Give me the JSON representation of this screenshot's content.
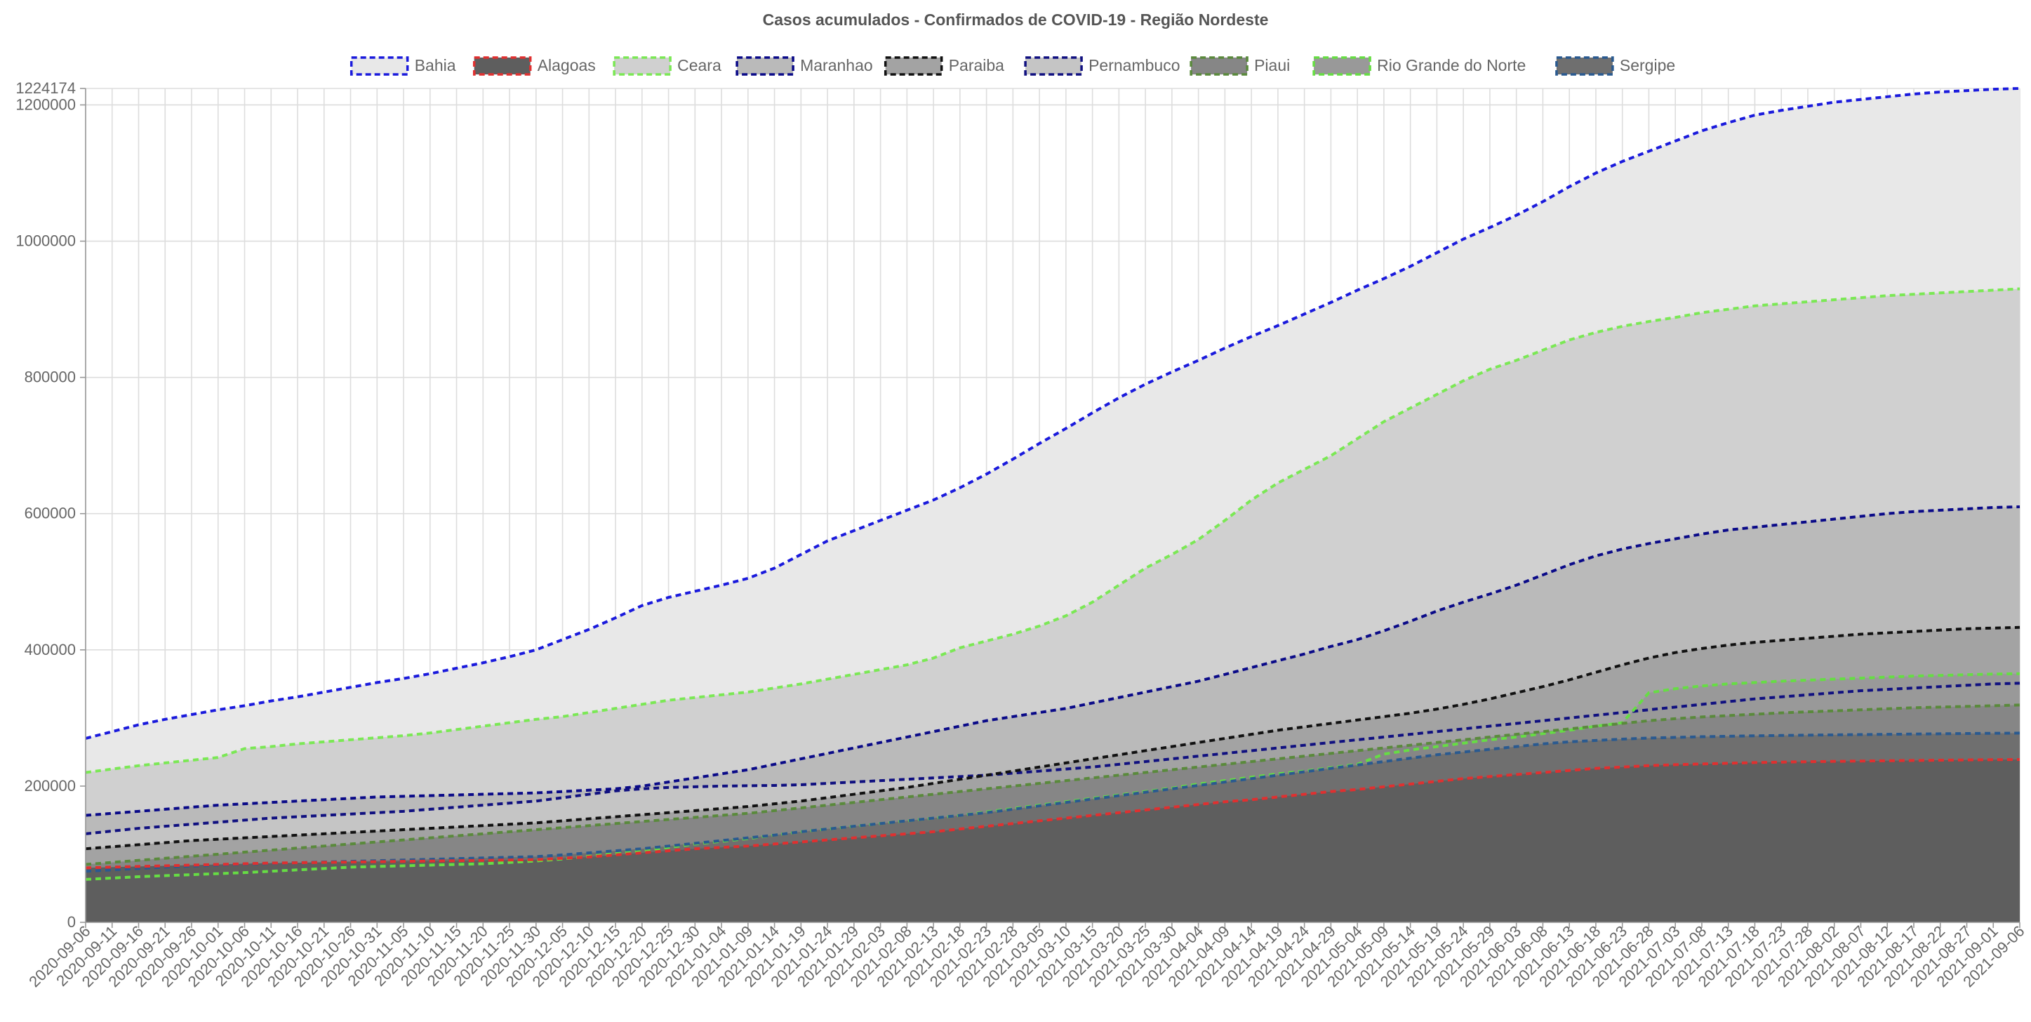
{
  "chart_data": {
    "type": "area",
    "title": "Casos acumulados - Confirmados de COVID-19 - Região Nordeste",
    "xlabel": "",
    "ylabel": "",
    "ylim": [
      0,
      1224174
    ],
    "y_ticks": [
      0,
      200000,
      400000,
      600000,
      800000,
      1000000,
      1200000,
      1224174
    ],
    "legend_position": "top",
    "grid": true,
    "line_style": "dashed",
    "x_ticks": [
      "2020-09-06",
      "2020-09-11",
      "2020-09-16",
      "2020-09-21",
      "2020-09-26",
      "2020-10-01",
      "2020-10-06",
      "2020-10-11",
      "2020-10-16",
      "2020-10-21",
      "2020-10-26",
      "2020-10-31",
      "2020-11-05",
      "2020-11-10",
      "2020-11-15",
      "2020-11-20",
      "2020-11-25",
      "2020-11-30",
      "2020-12-05",
      "2020-12-10",
      "2020-12-15",
      "2020-12-20",
      "2020-12-25",
      "2020-12-30",
      "2021-01-04",
      "2021-01-09",
      "2021-01-14",
      "2021-01-19",
      "2021-01-24",
      "2021-01-29",
      "2021-02-03",
      "2021-02-08",
      "2021-02-13",
      "2021-02-18",
      "2021-02-23",
      "2021-02-28",
      "2021-03-05",
      "2021-03-10",
      "2021-03-15",
      "2021-03-20",
      "2021-03-25",
      "2021-03-30",
      "2021-04-04",
      "2021-04-09",
      "2021-04-14",
      "2021-04-19",
      "2021-04-24",
      "2021-04-29",
      "2021-05-04",
      "2021-05-09",
      "2021-05-14",
      "2021-05-19",
      "2021-05-24",
      "2021-05-29",
      "2021-06-03",
      "2021-06-08",
      "2021-06-13",
      "2021-06-18",
      "2021-06-23",
      "2021-06-28",
      "2021-07-03",
      "2021-07-08",
      "2021-07-13",
      "2021-07-18",
      "2021-07-23",
      "2021-07-28",
      "2021-08-02",
      "2021-08-07",
      "2021-08-12",
      "2021-08-17",
      "2021-08-22",
      "2021-08-27",
      "2021-09-01",
      "2021-09-06"
    ],
    "x": [
      "2020-09-06",
      "2020-09-11",
      "2020-09-16",
      "2020-09-21",
      "2020-09-26",
      "2020-10-01",
      "2020-10-06",
      "2020-10-11",
      "2020-10-16",
      "2020-10-21",
      "2020-10-26",
      "2020-10-31",
      "2020-11-05",
      "2020-11-10",
      "2020-11-15",
      "2020-11-20",
      "2020-11-25",
      "2020-11-30",
      "2020-12-05",
      "2020-12-10",
      "2020-12-15",
      "2020-12-20",
      "2020-12-25",
      "2020-12-30",
      "2021-01-04",
      "2021-01-09",
      "2021-01-14",
      "2021-01-19",
      "2021-01-24",
      "2021-01-29",
      "2021-02-03",
      "2021-02-08",
      "2021-02-13",
      "2021-02-18",
      "2021-02-23",
      "2021-02-28",
      "2021-03-05",
      "2021-03-10",
      "2021-03-15",
      "2021-03-20",
      "2021-03-25",
      "2021-03-30",
      "2021-04-04",
      "2021-04-09",
      "2021-04-14",
      "2021-04-19",
      "2021-04-24",
      "2021-04-29",
      "2021-05-04",
      "2021-05-09",
      "2021-05-14",
      "2021-05-19",
      "2021-05-24",
      "2021-05-29",
      "2021-06-03",
      "2021-06-08",
      "2021-06-13",
      "2021-06-18",
      "2021-06-23",
      "2021-06-28",
      "2021-07-03",
      "2021-07-08",
      "2021-07-13",
      "2021-07-18",
      "2021-07-23",
      "2021-07-28",
      "2021-08-02",
      "2021-08-07",
      "2021-08-12",
      "2021-08-17",
      "2021-08-22",
      "2021-08-27",
      "2021-09-01",
      "2021-09-06"
    ],
    "series": [
      {
        "name": "Bahia",
        "color": "#1a1adc",
        "fill": "#e8e8e8",
        "values": [
          270000,
          280000,
          290000,
          298000,
          305000,
          312000,
          318000,
          325000,
          331000,
          338000,
          345000,
          352000,
          358000,
          365000,
          373000,
          381000,
          390000,
          400000,
          415000,
          430000,
          447000,
          465000,
          477000,
          486000,
          495000,
          505000,
          520000,
          540000,
          560000,
          575000,
          590000,
          605000,
          620000,
          638000,
          658000,
          680000,
          703000,
          725000,
          748000,
          770000,
          790000,
          808000,
          825000,
          843000,
          860000,
          876000,
          893000,
          910000,
          928000,
          945000,
          963000,
          983000,
          1003000,
          1020000,
          1038000,
          1058000,
          1080000,
          1100000,
          1117000,
          1132000,
          1147000,
          1162000,
          1174000,
          1185000,
          1192000,
          1198000,
          1204000,
          1208000,
          1212000,
          1216000,
          1219000,
          1221000,
          1223000,
          1224174
        ]
      },
      {
        "name": "Alagoas",
        "color": "#e03030",
        "fill": "#5e5e5e",
        "values": [
          80000,
          81000,
          82000,
          83000,
          84000,
          85000,
          86000,
          87000,
          87500,
          88000,
          88500,
          89000,
          89500,
          90000,
          90500,
          91000,
          91500,
          92000,
          94000,
          96000,
          99000,
          102000,
          105000,
          108000,
          110000,
          112000,
          115000,
          118000,
          121000,
          124000,
          127000,
          130000,
          133000,
          137000,
          141000,
          145000,
          149000,
          153000,
          157000,
          161000,
          165000,
          169000,
          173000,
          177000,
          180000,
          184000,
          188000,
          192000,
          195000,
          199000,
          203000,
          207000,
          211000,
          214000,
          217000,
          220000,
          223000,
          226000,
          228000,
          230000,
          231500,
          232500,
          233500,
          234500,
          235200,
          235800,
          236300,
          236800,
          237200,
          237600,
          238000,
          238400,
          238800,
          239000
        ]
      },
      {
        "name": "Ceara",
        "color": "#7be855",
        "fill": "#d0d0d0",
        "values": [
          220000,
          225000,
          230000,
          234000,
          238000,
          242000,
          255000,
          258000,
          262000,
          265000,
          268000,
          271000,
          274000,
          278000,
          283000,
          288000,
          293000,
          298000,
          302000,
          308000,
          314000,
          320000,
          326000,
          330000,
          334000,
          338000,
          344000,
          350000,
          357000,
          364000,
          371000,
          378000,
          388000,
          403000,
          413000,
          423000,
          435000,
          450000,
          470000,
          495000,
          520000,
          540000,
          562000,
          590000,
          620000,
          645000,
          665000,
          685000,
          710000,
          735000,
          755000,
          775000,
          795000,
          812000,
          825000,
          840000,
          855000,
          866000,
          875000,
          882000,
          888000,
          895000,
          900000,
          905000,
          908000,
          911000,
          914000,
          917000,
          920000,
          922000,
          924000,
          926000,
          928000,
          930000
        ]
      },
      {
        "name": "Maranhao",
        "color": "#0a0a88",
        "fill": "#bababa",
        "values": [
          157000,
          160000,
          163000,
          166000,
          169000,
          172000,
          174000,
          176000,
          178000,
          180000,
          182000,
          184000,
          185000,
          186000,
          187000,
          188000,
          189000,
          190000,
          192000,
          194000,
          196000,
          200000,
          206000,
          212000,
          218000,
          224000,
          232000,
          240000,
          248000,
          256000,
          264000,
          272000,
          280000,
          288000,
          296000,
          302000,
          308000,
          314000,
          322000,
          330000,
          338000,
          346000,
          354000,
          364000,
          374000,
          384000,
          394000,
          405000,
          415000,
          428000,
          442000,
          457000,
          470000,
          482000,
          495000,
          510000,
          525000,
          538000,
          548000,
          556000,
          563000,
          570000,
          576000,
          580000,
          584000,
          588000,
          592000,
          596000,
          600000,
          603000,
          605000,
          607000,
          609000,
          610000
        ]
      },
      {
        "name": "Paraiba",
        "color": "#111111",
        "fill": "#a3a3a3",
        "values": [
          108000,
          111000,
          114000,
          117000,
          120000,
          122000,
          124000,
          126000,
          128000,
          130000,
          132000,
          134000,
          136000,
          138000,
          140000,
          142000,
          144000,
          146000,
          149000,
          152000,
          155000,
          158000,
          161000,
          164000,
          167000,
          170000,
          174000,
          178000,
          183000,
          188000,
          193000,
          198000,
          204000,
          210000,
          216000,
          222000,
          228000,
          234000,
          240000,
          246000,
          252000,
          258000,
          264000,
          270000,
          276000,
          282000,
          287000,
          292000,
          297000,
          302000,
          307000,
          313000,
          320000,
          328000,
          337000,
          346000,
          356000,
          367000,
          378000,
          388000,
          396000,
          402000,
          407000,
          411000,
          414000,
          417000,
          420000,
          423000,
          425000,
          427000,
          429000,
          431000,
          432000,
          433000
        ]
      },
      {
        "name": "Pernambuco",
        "color": "#101080",
        "fill": "#c5c5c5",
        "values": [
          130000,
          134000,
          138000,
          141000,
          144000,
          147000,
          150000,
          153000,
          155000,
          157000,
          159000,
          161000,
          163000,
          166000,
          169000,
          172000,
          175000,
          178000,
          183000,
          188000,
          193000,
          196000,
          198000,
          199000,
          200000,
          200500,
          201000,
          202000,
          204000,
          206000,
          208000,
          210000,
          212000,
          214000,
          216000,
          219000,
          222000,
          225000,
          228000,
          232000,
          236000,
          240000,
          244000,
          248000,
          252000,
          256000,
          260000,
          264000,
          268000,
          272000,
          276000,
          280000,
          284000,
          288000,
          292000,
          296000,
          300000,
          304000,
          308000,
          312000,
          316000,
          320000,
          324000,
          328000,
          331000,
          334000,
          337000,
          340000,
          342000,
          344000,
          346000,
          348000,
          350000,
          351000
        ]
      },
      {
        "name": "Piaui",
        "color": "#5a8a3c",
        "fill": "#868686",
        "values": [
          85000,
          88000,
          91000,
          94000,
          97000,
          100000,
          103000,
          106000,
          109000,
          112000,
          115000,
          118000,
          121000,
          124000,
          127000,
          130000,
          133000,
          136000,
          139000,
          142000,
          145000,
          148000,
          151000,
          154000,
          157000,
          160000,
          164000,
          168000,
          172000,
          176000,
          180000,
          184000,
          188000,
          192000,
          196000,
          200000,
          204000,
          208000,
          212000,
          216000,
          220000,
          224000,
          228000,
          232000,
          236000,
          240000,
          244000,
          248000,
          252000,
          256000,
          260000,
          264000,
          268000,
          272000,
          276000,
          280000,
          284000,
          288000,
          292000,
          296000,
          299000,
          301500,
          303500,
          305500,
          307500,
          309000,
          310500,
          312000,
          313500,
          315000,
          316000,
          317000,
          318000,
          319000
        ]
      },
      {
        "name": "Rio Grande do Norte",
        "color": "#66dd44",
        "fill": "#999999",
        "values": [
          63000,
          65000,
          67000,
          68500,
          70000,
          71500,
          73000,
          75000,
          77000,
          79000,
          81000,
          82000,
          83000,
          84000,
          85000,
          86000,
          88000,
          90000,
          93000,
          97000,
          101000,
          105000,
          110000,
          115000,
          119000,
          123000,
          128000,
          133000,
          137000,
          141000,
          145000,
          149000,
          153000,
          157000,
          162000,
          167000,
          172000,
          177000,
          182000,
          187000,
          192000,
          197000,
          203000,
          208000,
          213000,
          218000,
          222000,
          227000,
          232000,
          247000,
          253000,
          258000,
          263000,
          268000,
          272000,
          277000,
          282000,
          288000,
          293000,
          337000,
          343000,
          347000,
          350000,
          352000,
          354000,
          355500,
          357000,
          358500,
          360000,
          361500,
          362500,
          363500,
          364500,
          365000
        ]
      },
      {
        "name": "Sergipe",
        "color": "#2a5a90",
        "fill": "#6f6f6f",
        "values": [
          75000,
          77000,
          79000,
          81000,
          82500,
          84000,
          85500,
          86500,
          87500,
          88500,
          89500,
          90500,
          91500,
          92500,
          93500,
          94500,
          95500,
          96500,
          99000,
          102000,
          105000,
          108000,
          112000,
          116000,
          120000,
          124000,
          128000,
          133000,
          137000,
          141000,
          145000,
          149000,
          153000,
          157000,
          161000,
          166000,
          171000,
          176000,
          181000,
          186000,
          191000,
          196000,
          201000,
          206000,
          211000,
          216000,
          221000,
          226000,
          231000,
          236000,
          241000,
          246000,
          250000,
          254000,
          258000,
          262000,
          265000,
          267000,
          269000,
          270500,
          271500,
          272500,
          273200,
          273800,
          274300,
          274800,
          275200,
          275600,
          276000,
          276400,
          276800,
          277200,
          277500,
          277800
        ]
      }
    ],
    "draw_order": [
      0,
      2,
      3,
      5,
      4,
      7,
      6,
      8,
      1
    ]
  }
}
